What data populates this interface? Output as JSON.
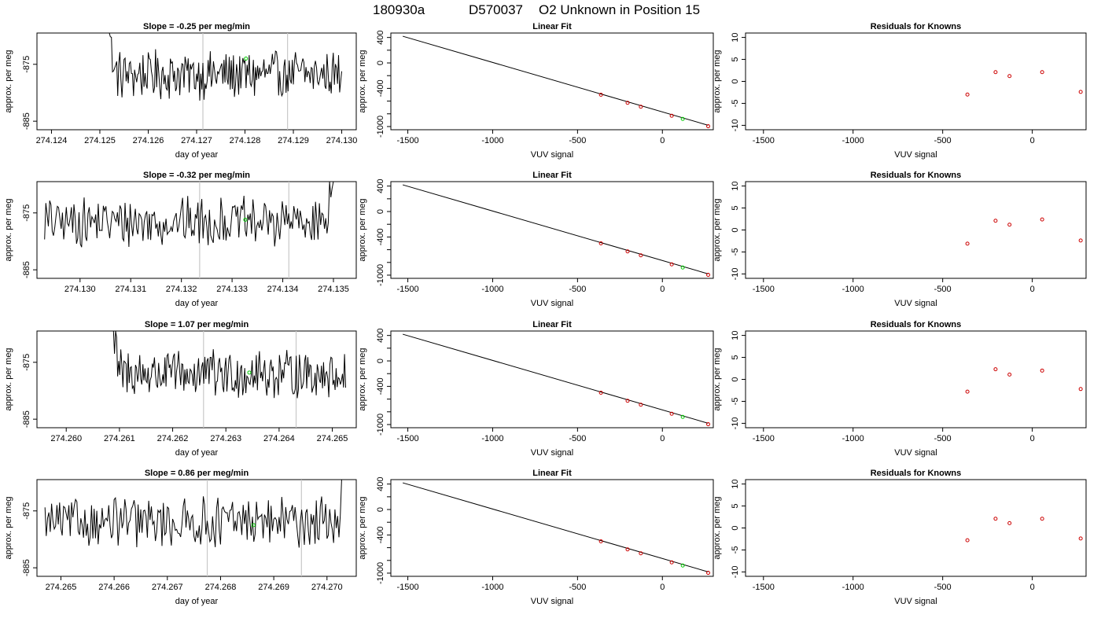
{
  "header": {
    "run_id": "180930a",
    "cylinder": "D570037",
    "description": "O2 Unknown in Position  15"
  },
  "colors": {
    "trace": "#000000",
    "marker_vertical": "#c8c8c8",
    "unknown_point": "#00cc00",
    "known_point": "#cc0000"
  },
  "chart_data": [
    {
      "type": "line",
      "panel": "timeseries-1",
      "title": "Slope =  -0.25  per meg/min",
      "xlabel": "day of year",
      "ylabel": "approx. per meg",
      "xlim": [
        274.1237,
        274.1303
      ],
      "ylim": [
        -886.5,
        -869.5
      ],
      "xticks": [
        "274.124",
        "274.125",
        "274.126",
        "274.127",
        "274.128",
        "274.129",
        "274.130"
      ],
      "yticks": [
        "-875",
        "-885"
      ],
      "vlines": [
        274.12713,
        274.12888
      ],
      "series_start": 274.125,
      "series_end": 274.13,
      "spike_start": true,
      "spike_end": false,
      "base": -876.8,
      "unknown_point": {
        "x": 274.12802,
        "y": -874.0
      }
    },
    {
      "type": "line",
      "panel": "timeseries-2",
      "title": "Slope =  -0.32  per meg/min",
      "xlabel": "day of year",
      "ylabel": "approx. per meg",
      "xlim": [
        274.12915,
        274.13545
      ],
      "ylim": [
        -886.5,
        -869.5
      ],
      "xticks": [
        "274.130",
        "274.131",
        "274.132",
        "274.133",
        "274.134",
        "274.135"
      ],
      "yticks": [
        "-875",
        "-885"
      ],
      "vlines": [
        274.13236,
        274.13412
      ],
      "series_start": 274.1293,
      "series_end": 274.1351,
      "spike_start": false,
      "spike_end": true,
      "base": -876.6,
      "unknown_point": {
        "x": 274.13326,
        "y": -876.2
      }
    },
    {
      "type": "line",
      "panel": "timeseries-3",
      "title": "Slope =  1.07  per meg/min",
      "xlabel": "day of year",
      "ylabel": "approx. per meg",
      "xlim": [
        274.25945,
        274.26545
      ],
      "ylim": [
        -886.5,
        -869.5
      ],
      "xticks": [
        "274.260",
        "274.261",
        "274.262",
        "274.263",
        "274.264",
        "274.265"
      ],
      "yticks": [
        "-875",
        "-885"
      ],
      "vlines": [
        274.26258,
        274.26432
      ],
      "series_start": 274.26071,
      "series_end": 274.26525,
      "spike_start": true,
      "spike_end": false,
      "base": -877.0,
      "unknown_point": {
        "x": 274.26344,
        "y": -876.8
      }
    },
    {
      "type": "line",
      "panel": "timeseries-4",
      "title": "Slope =  0.86  per meg/min",
      "xlabel": "day of year",
      "ylabel": "approx. per meg",
      "xlim": [
        274.26455,
        274.27055
      ],
      "ylim": [
        -886.5,
        -869.5
      ],
      "xticks": [
        "274.265",
        "274.266",
        "274.267",
        "274.268",
        "274.269",
        "274.270"
      ],
      "yticks": [
        "-875",
        "-885"
      ],
      "vlines": [
        274.26775,
        274.26952
      ],
      "series_start": 274.2647,
      "series_end": 274.27045,
      "spike_start": false,
      "spike_end": true,
      "base": -877.0,
      "unknown_point": {
        "x": 274.26862,
        "y": -877.5
      }
    },
    {
      "type": "scatter",
      "panel": "linear-fit",
      "title": "Linear Fit",
      "xlabel": "VUV signal",
      "ylabel": "approx. per meg",
      "xlim": [
        -1600,
        300
      ],
      "ylim": [
        -1050,
        470
      ],
      "xticks": [
        -1500,
        -1000,
        -500,
        0
      ],
      "yticks": [
        400,
        0,
        -400,
        -1000
      ],
      "yticks_minor": [
        200,
        -200,
        -600,
        -800
      ],
      "fit_line": {
        "x": [
          -1530,
          270
        ],
        "y": [
          420,
          -980
        ]
      },
      "known_points": {
        "x": [
          -362,
          -205,
          -127,
          55,
          270
        ],
        "y": [
          -500,
          -627,
          -688,
          -830,
          -995
        ]
      },
      "unknown_point": {
        "x": 120,
        "y": -880
      }
    },
    {
      "type": "scatter",
      "panel": "residuals",
      "title": "Residuals for Knowns",
      "xlabel": "VUV signal",
      "ylabel": "approx. per meg",
      "xlim": [
        -1600,
        300
      ],
      "ylim": [
        -11,
        11
      ],
      "xticks": [
        -1500,
        -1000,
        -500,
        0
      ],
      "yticks": [
        10,
        5,
        0,
        -5,
        -10
      ],
      "points": {
        "x": [
          -362,
          -205,
          -127,
          55,
          270
        ],
        "y": [
          -3.0,
          2.1,
          1.2,
          2.1,
          -2.4
        ]
      }
    }
  ]
}
